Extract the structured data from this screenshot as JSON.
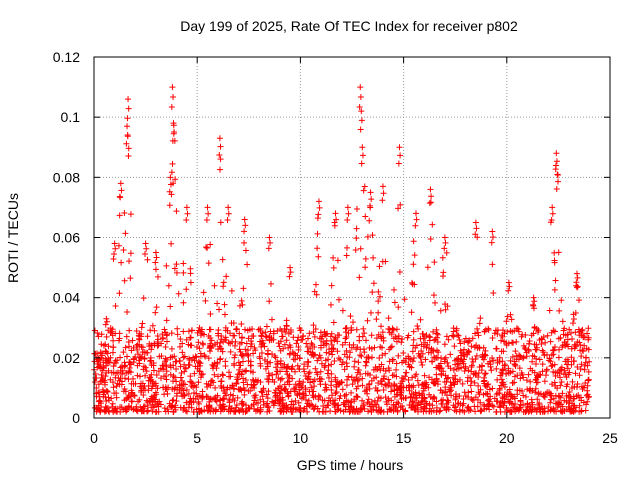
{
  "chart_data": {
    "type": "scatter",
    "title": "Day 199 of 2025, Rate Of TEC Index for receiver p802",
    "xlabel": "GPS time / hours",
    "ylabel": "ROTI / TECUs",
    "xlim": [
      0,
      25
    ],
    "ylim": [
      0,
      0.12
    ],
    "x_ticks": [
      0,
      5,
      10,
      15,
      20,
      25
    ],
    "x_tick_labels": [
      "0",
      "5",
      "10",
      "15",
      "20",
      "25"
    ],
    "y_ticks": [
      0,
      0.02,
      0.04,
      0.06,
      0.08,
      0.1,
      0.12
    ],
    "y_tick_labels": [
      "0",
      "0.02",
      "0.04",
      "0.06",
      "0.08",
      "0.1",
      "0.12"
    ],
    "grid": true,
    "grid_style": "dotted",
    "legend": "none",
    "marker": "plus",
    "series_color": "#ff0000",
    "series": [
      {
        "x_range": [
          0,
          24
        ],
        "typical_band": [
          0.002,
          0.03
        ],
        "peaks": [
          {
            "x": 0.2,
            "y": 0.02
          },
          {
            "x": 0.6,
            "y": 0.033
          },
          {
            "x": 1.0,
            "y": 0.058
          },
          {
            "x": 1.3,
            "y": 0.078
          },
          {
            "x": 1.6,
            "y": 0.097
          },
          {
            "x": 1.65,
            "y": 0.106
          },
          {
            "x": 2.5,
            "y": 0.058
          },
          {
            "x": 3.0,
            "y": 0.055
          },
          {
            "x": 3.7,
            "y": 0.08
          },
          {
            "x": 3.8,
            "y": 0.11
          },
          {
            "x": 3.85,
            "y": 0.098
          },
          {
            "x": 4.5,
            "y": 0.07
          },
          {
            "x": 5.5,
            "y": 0.07
          },
          {
            "x": 6.1,
            "y": 0.093
          },
          {
            "x": 6.5,
            "y": 0.07
          },
          {
            "x": 7.3,
            "y": 0.066
          },
          {
            "x": 8.5,
            "y": 0.06
          },
          {
            "x": 9.5,
            "y": 0.05
          },
          {
            "x": 10.9,
            "y": 0.072
          },
          {
            "x": 11.7,
            "y": 0.068
          },
          {
            "x": 12.3,
            "y": 0.07
          },
          {
            "x": 12.9,
            "y": 0.11
          },
          {
            "x": 12.95,
            "y": 0.102
          },
          {
            "x": 13.0,
            "y": 0.09
          },
          {
            "x": 13.4,
            "y": 0.075
          },
          {
            "x": 14.0,
            "y": 0.077
          },
          {
            "x": 14.8,
            "y": 0.09
          },
          {
            "x": 15.6,
            "y": 0.068
          },
          {
            "x": 16.3,
            "y": 0.076
          },
          {
            "x": 17.0,
            "y": 0.06
          },
          {
            "x": 18.5,
            "y": 0.065
          },
          {
            "x": 19.3,
            "y": 0.062
          },
          {
            "x": 20.1,
            "y": 0.045
          },
          {
            "x": 21.3,
            "y": 0.04
          },
          {
            "x": 22.2,
            "y": 0.07
          },
          {
            "x": 22.4,
            "y": 0.088
          },
          {
            "x": 22.45,
            "y": 0.081
          },
          {
            "x": 23.4,
            "y": 0.048
          }
        ]
      }
    ]
  }
}
